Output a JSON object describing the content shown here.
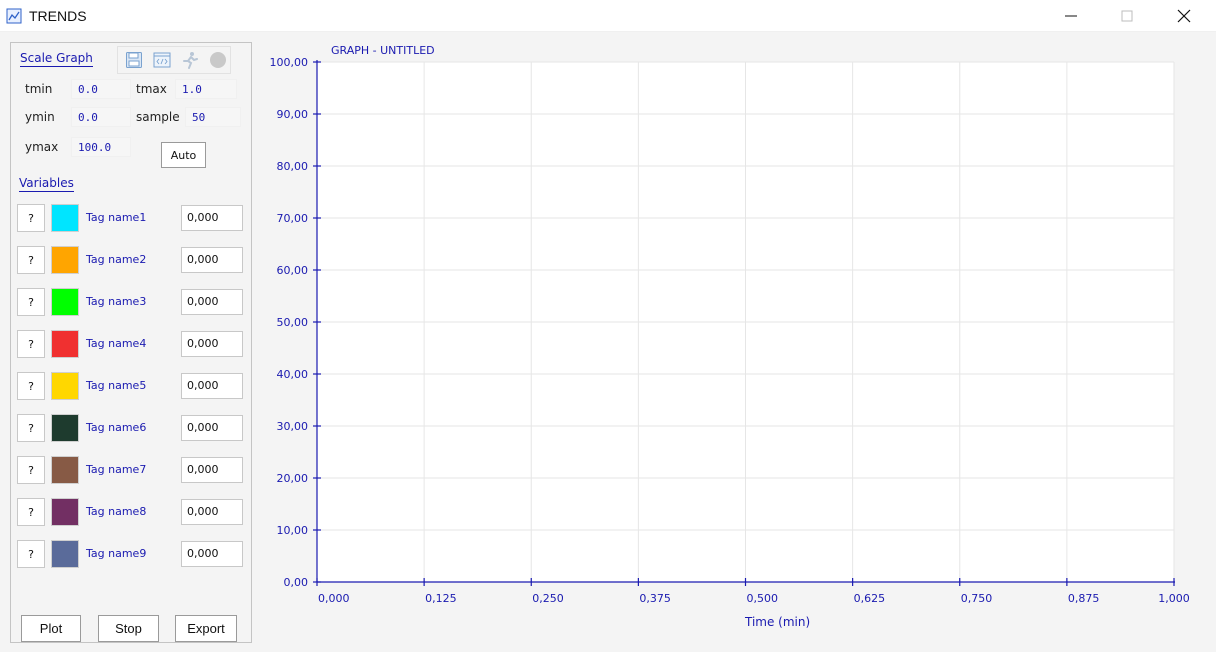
{
  "window": {
    "title": "TRENDS",
    "icon": "chart-line-icon"
  },
  "panel": {
    "scale_label": "Scale Graph",
    "toolbar_icons": [
      "save-icon",
      "code-window-icon",
      "running-person-icon",
      "stop-circle-icon"
    ],
    "fields": {
      "tmin_label": "tmin",
      "tmin_value": "0.0",
      "tmax_label": "tmax",
      "tmax_value": "1.0",
      "ymin_label": "ymin",
      "ymin_value": "0.0",
      "sample_label": "sample",
      "sample_value": "50",
      "ymax_label": "ymax",
      "ymax_value": "100.0"
    },
    "auto_label": "Auto",
    "variables_label": "Variables",
    "variables": [
      {
        "help": "?",
        "name": "Tag name1",
        "value": "0,000",
        "color": "#00e5ff"
      },
      {
        "help": "?",
        "name": "Tag name2",
        "value": "0,000",
        "color": "#ffa500"
      },
      {
        "help": "?",
        "name": "Tag name3",
        "value": "0,000",
        "color": "#00ff00"
      },
      {
        "help": "?",
        "name": "Tag name4",
        "value": "0,000",
        "color": "#f03030"
      },
      {
        "help": "?",
        "name": "Tag name5",
        "value": "0,000",
        "color": "#ffd700"
      },
      {
        "help": "?",
        "name": "Tag name6",
        "value": "0,000",
        "color": "#1e3b2e"
      },
      {
        "help": "?",
        "name": "Tag name7",
        "value": "0,000",
        "color": "#875a45"
      },
      {
        "help": "?",
        "name": "Tag name8",
        "value": "0,000",
        "color": "#722f63"
      },
      {
        "help": "?",
        "name": "Tag name9",
        "value": "0,000",
        "color": "#5a6b9a"
      }
    ],
    "buttons": {
      "plot": "Plot",
      "stop": "Stop",
      "export": "Export"
    }
  },
  "chart_data": {
    "type": "line",
    "title": "GRAPH - UNTITLED",
    "xlabel": "Time (min)",
    "ylabel": "",
    "xlim": [
      0,
      1
    ],
    "ylim": [
      0,
      100
    ],
    "x_ticks": [
      "0,000",
      "0,125",
      "0,250",
      "0,375",
      "0,500",
      "0,625",
      "0,750",
      "0,875",
      "1,000"
    ],
    "y_ticks": [
      "0,00",
      "10,00",
      "20,00",
      "30,00",
      "40,00",
      "50,00",
      "60,00",
      "70,00",
      "80,00",
      "90,00",
      "100,00"
    ],
    "grid": true,
    "series": [],
    "axis_color": "#1a1ab0"
  }
}
